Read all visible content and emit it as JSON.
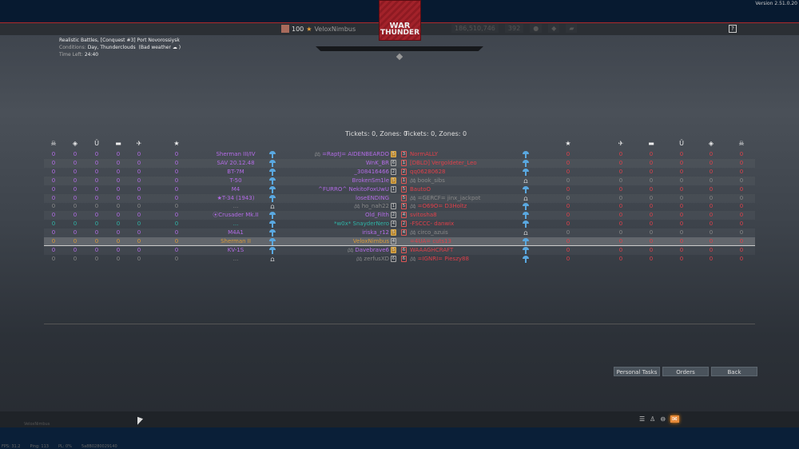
{
  "version": "Version 2.51.0.20",
  "header": {
    "player_level": "100",
    "player_name": "VeloxNimbus",
    "lions": "186,510,746",
    "eagles": "392",
    "help": "?"
  },
  "logo": {
    "line1": "WAR",
    "line2": "THUNDER"
  },
  "battle": {
    "mode": "Realistic Battles, [Conquest #3] Port Novorossiysk",
    "conditions_label": "Conditions:",
    "conditions": "Day, Thunderclouds",
    "weather": "(Bad weather ☁ )",
    "time_label": "Time Left:",
    "time": "24:40"
  },
  "tickets": {
    "left": "Tickets: 0, Zones: 0",
    "right": "Tickets: 0, Zones: 0"
  },
  "columns_left": [
    "skull-icon",
    "capture-icon",
    "assist-icon",
    "ground-kill-icon",
    "air-kill-icon",
    "score-icon"
  ],
  "columns_right": [
    "score-icon",
    "air-kill-icon",
    "ground-kill-icon",
    "assist-icon",
    "capture-icon",
    "skull-icon"
  ],
  "team_left": [
    {
      "vehicle": "Sherman III/IV",
      "player": "=RaptJ= AIDENBEARDO",
      "console": true,
      "rank": "5",
      "rank_gold": true,
      "color": "purple",
      "status": "parachute",
      "stats": [
        "0",
        "0",
        "0",
        "0",
        "0",
        "0"
      ]
    },
    {
      "vehicle": "SAV 20.12.48",
      "player": "WnK_BR",
      "rank": "6",
      "color": "purple",
      "status": "parachute",
      "stats": [
        "0",
        "0",
        "0",
        "0",
        "0",
        "0"
      ]
    },
    {
      "vehicle": "BT-7M",
      "player": "_308416466",
      "rank": "2",
      "color": "purple",
      "status": "parachute",
      "stats": [
        "0",
        "0",
        "0",
        "0",
        "0",
        "0"
      ]
    },
    {
      "vehicle": "T-50",
      "player": "BrokenSm1le",
      "rank": "5",
      "rank_gold": true,
      "color": "purple",
      "status": "parachute",
      "stats": [
        "0",
        "0",
        "0",
        "0",
        "0",
        "0"
      ]
    },
    {
      "vehicle": "M4",
      "player": "^FURRO^ NekitoFoxUwU",
      "rank": "1",
      "color": "purple",
      "status": "parachute",
      "stats": [
        "0",
        "0",
        "0",
        "0",
        "0",
        "0"
      ]
    },
    {
      "vehicle": "★T-34 (1943)",
      "player": "loseENDING",
      "rank": "",
      "color": "purple",
      "status": "parachute",
      "stats": [
        "0",
        "0",
        "0",
        "0",
        "0",
        "0"
      ]
    },
    {
      "vehicle": "...",
      "player": "ho_nah22",
      "console": true,
      "rank": "1",
      "color": "gray",
      "status": "tank",
      "stats": [
        "0",
        "0",
        "0",
        "0",
        "0",
        "0"
      ]
    },
    {
      "vehicle": "⦿Crusader Mk.II",
      "player": "Old_Filth",
      "rank": "2",
      "color": "purple",
      "status": "parachute",
      "stats": [
        "0",
        "0",
        "0",
        "0",
        "0",
        "0"
      ]
    },
    {
      "vehicle": "...",
      "player": "*w0x* SnayderNero",
      "rank": "4",
      "color": "teal",
      "status": "parachute",
      "stats": [
        "0",
        "0",
        "0",
        "0",
        "0",
        "0"
      ]
    },
    {
      "vehicle": "M4A1",
      "player": "iriska_r12",
      "rank": "5",
      "rank_gold": true,
      "color": "purple",
      "status": "parachute",
      "stats": [
        "0",
        "0",
        "0",
        "0",
        "0",
        "0"
      ]
    },
    {
      "vehicle": "Sherman II",
      "player": "VeloxNimbus",
      "rank": "4",
      "color": "gold",
      "status": "parachute",
      "me": true,
      "stats": [
        "0",
        "0",
        "0",
        "0",
        "0",
        "0"
      ]
    },
    {
      "vehicle": "KV-1S",
      "player": "Davebrave6",
      "console": true,
      "rank": "5",
      "rank_gold": true,
      "color": "purple",
      "status": "parachute",
      "stats": [
        "0",
        "0",
        "0",
        "0",
        "0",
        "0"
      ]
    },
    {
      "vehicle": "...",
      "player": "zerfusXD",
      "console": true,
      "rank": "6",
      "color": "gray",
      "status": "tank",
      "stats": [
        "0",
        "0",
        "0",
        "0",
        "0",
        "0"
      ]
    }
  ],
  "team_right": [
    {
      "player": "NormALLY",
      "rank": "3",
      "color": "red",
      "status": "parachute",
      "stats": [
        "0",
        "0",
        "0",
        "0",
        "0",
        "0"
      ]
    },
    {
      "player": "[DBLD] Vergoldeter_Leo",
      "rank": "1",
      "color": "red",
      "status": "parachute",
      "stats": [
        "0",
        "0",
        "0",
        "0",
        "0",
        "0"
      ]
    },
    {
      "player": "qq06280628",
      "rank": "2",
      "color": "red",
      "status": "parachute",
      "stats": [
        "0",
        "0",
        "0",
        "0",
        "0",
        "0"
      ]
    },
    {
      "player": "book_sibs",
      "console": true,
      "rank": "1",
      "color": "rgray",
      "status": "tank",
      "stats": [
        "0",
        "0",
        "0",
        "0",
        "0",
        "0"
      ]
    },
    {
      "player": "BautoO",
      "rank": "5",
      "color": "red",
      "status": "parachute",
      "stats": [
        "0",
        "0",
        "0",
        "0",
        "0",
        "0"
      ]
    },
    {
      "player": "=GERCF= jinx_jackpot",
      "console": true,
      "rank": "5",
      "color": "rgray",
      "status": "tank",
      "stats": [
        "0",
        "0",
        "0",
        "0",
        "0",
        "0"
      ]
    },
    {
      "player": "=O69O= D3Holtz",
      "console": true,
      "rank": "5",
      "color": "red",
      "status": "parachute",
      "stats": [
        "0",
        "0",
        "0",
        "0",
        "0",
        "0"
      ]
    },
    {
      "player": "svitosha8",
      "rank": "4",
      "color": "red",
      "status": "parachute",
      "stats": [
        "0",
        "0",
        "0",
        "0",
        "0",
        "0"
      ]
    },
    {
      "player": "-FSCCC- danwix",
      "rank": "2",
      "color": "red",
      "status": "parachute",
      "stats": [
        "0",
        "0",
        "0",
        "0",
        "0",
        "0"
      ]
    },
    {
      "player": "circo_azuis",
      "console": true,
      "rank": "4",
      "color": "rgray",
      "status": "tank",
      "stats": [
        "0",
        "0",
        "0",
        "0",
        "0",
        "0"
      ]
    },
    {
      "player": "=4UA= cuts13",
      "rank": "",
      "color": "red",
      "status": "parachute",
      "stats": [
        "0",
        "0",
        "0",
        "0",
        "0",
        "0"
      ]
    },
    {
      "player": "WAAAGHCRAFT",
      "rank": "6",
      "color": "red",
      "status": "parachute",
      "stats": [
        "0",
        "0",
        "0",
        "0",
        "0",
        "0"
      ]
    },
    {
      "player": "=IGNRI= Pieszy88",
      "console": true,
      "rank": "6",
      "color": "red",
      "status": "parachute",
      "stats": [
        "0",
        "0",
        "0",
        "0",
        "0",
        "0"
      ]
    }
  ],
  "buttons": {
    "personal_tasks": "Personal Tasks",
    "orders": "Orders",
    "back": "Back"
  },
  "footer": {
    "player_name": "VeloxNimbus",
    "fps": "FPS: 31.2",
    "ping": "Ping: 113",
    "pl": "PL: 0%",
    "session": "5a8B0280029140"
  }
}
